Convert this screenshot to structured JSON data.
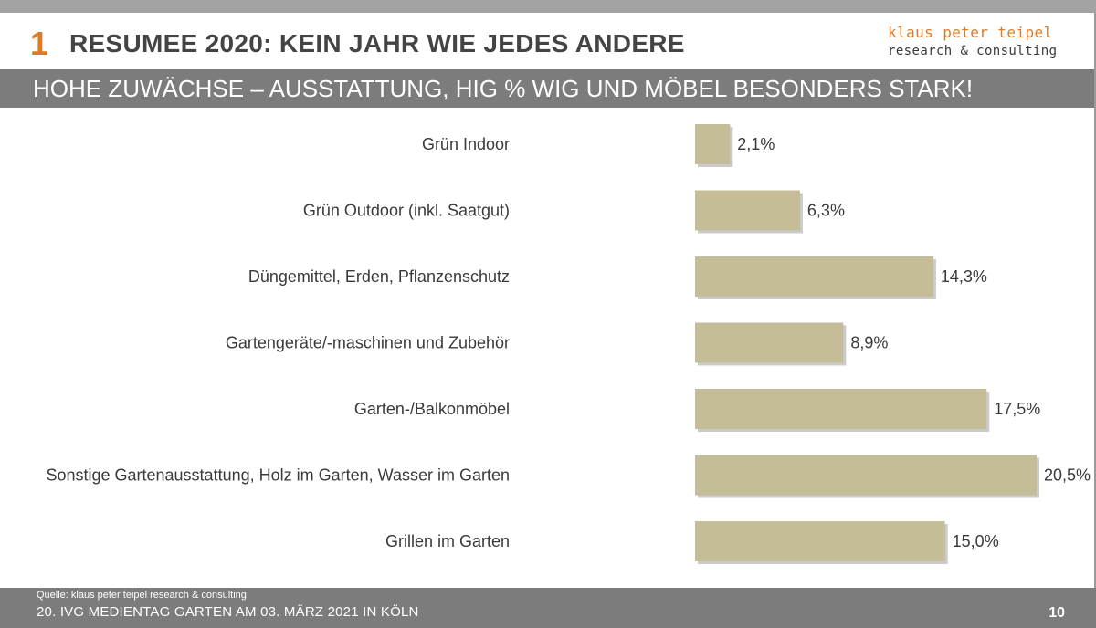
{
  "slide": {
    "section_number": "1",
    "title": "RESUMEE 2020: KEIN JAHR WIE JEDES ANDERE",
    "subtitle": "HOHE ZUWÄCHSE – AUSSTATTUNG, HIG % WIG UND MÖBEL  BESONDERS STARK!",
    "brand_line1": "klaus peter teipel",
    "brand_line2": "research & consulting",
    "source": "Quelle: klaus peter teipel research & consulting",
    "event": "20. IVG MEDIENTAG GARTEN AM 03. MÄRZ 2021 IN KÖLN",
    "page_number": "10"
  },
  "colors": {
    "accent": "#e07b25",
    "bar": "#c5bd98",
    "bar_shadow": "#a9a9a9",
    "band": "#7c7c7c",
    "top_band": "#a3a3a3",
    "text": "#3a3a3a"
  },
  "chart_data": {
    "type": "bar",
    "orientation": "horizontal",
    "categories": [
      "Grün Indoor",
      "Grün Outdoor (inkl. Saatgut)",
      "Düngemittel, Erden, Pflanzenschutz",
      "Gartengeräte/-maschinen und Zubehör",
      "Garten-/Balkonmöbel",
      "Sonstige Gartenausstattung, Holz im Garten, Wasser im Garten",
      "Grillen im Garten"
    ],
    "values": [
      2.1,
      6.3,
      14.3,
      8.9,
      17.5,
      20.5,
      15.0
    ],
    "value_labels": [
      "2,1%",
      "6,3%",
      "14,3%",
      "8,9%",
      "17,5%",
      "20,5%",
      "15,0%"
    ],
    "unit": "%",
    "xlim": [
      0,
      20.5
    ],
    "grid": false,
    "legend": "none"
  }
}
